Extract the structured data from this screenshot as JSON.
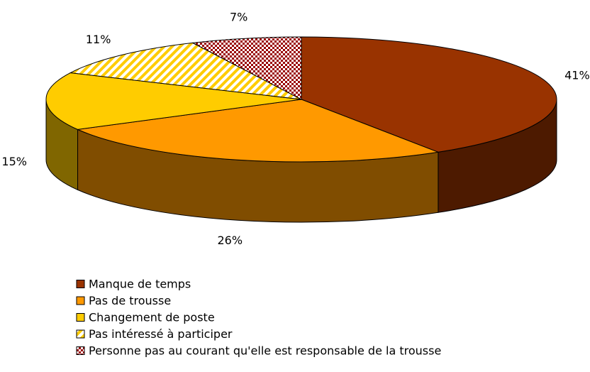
{
  "chart_data": {
    "type": "pie3d",
    "categories": [
      "Manque de temps",
      "Pas de trousse",
      "Changement de poste",
      "Pas intéressé à participer",
      "Personne pas au courant qu'elle est responsable de la trousse"
    ],
    "values": [
      41,
      26,
      15,
      11,
      7
    ],
    "value_labels": [
      "41%",
      "26%",
      "15%",
      "11%",
      "7%"
    ],
    "colors": [
      "#993300",
      "#ff9900",
      "#ffcc00",
      "#ffcc00",
      "#990000"
    ],
    "patterns": [
      "solid",
      "solid",
      "solid",
      "hatch",
      "checker"
    ]
  }
}
